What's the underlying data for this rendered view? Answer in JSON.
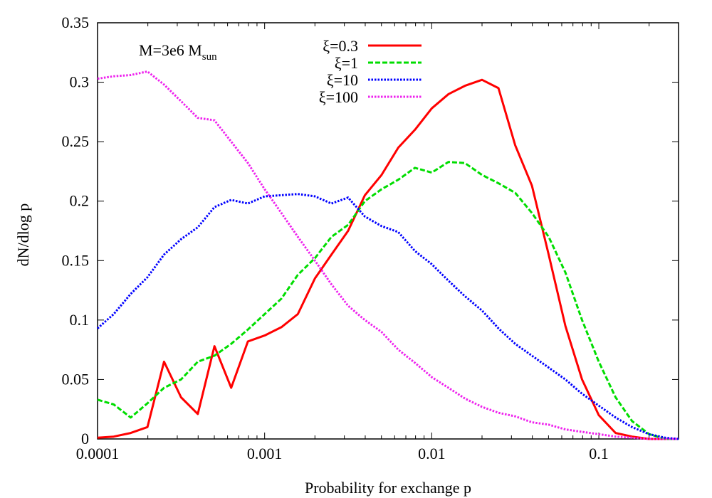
{
  "chart_data": {
    "type": "line",
    "title": "",
    "xlabel": "Probability for exchange p",
    "ylabel": "dN/dlog p",
    "xscale": "log",
    "xlim": [
      0.0001,
      0.3
    ],
    "ylim": [
      0,
      0.35
    ],
    "x_ticks": [
      0.0001,
      0.001,
      0.01,
      0.1
    ],
    "x_tick_labels": [
      "0.0001",
      "0.001",
      "0.01",
      "0.1"
    ],
    "y_ticks": [
      0,
      0.05,
      0.1,
      0.15,
      0.2,
      0.25,
      0.3,
      0.35
    ],
    "y_tick_labels": [
      "0",
      "0.05",
      "0.1",
      "0.15",
      "0.2",
      "0.25",
      "0.3",
      "0.35"
    ],
    "annotation": {
      "main": "M=3e6 M",
      "sub": "sun"
    },
    "legend_position": "top-center",
    "grid": false,
    "series": [
      {
        "name": "ξ=0.3",
        "color": "#ff0000",
        "style": "solid",
        "points": [
          [
            0.0001,
            0.001
          ],
          [
            0.000125,
            0.002
          ],
          [
            0.000158,
            0.005
          ],
          [
            0.000199,
            0.01
          ],
          [
            0.00025,
            0.065
          ],
          [
            0.000316,
            0.035
          ],
          [
            0.000398,
            0.021
          ],
          [
            0.000501,
            0.078
          ],
          [
            0.000631,
            0.043
          ],
          [
            0.000794,
            0.082
          ],
          [
            0.001,
            0.087
          ],
          [
            0.00126,
            0.094
          ],
          [
            0.00158,
            0.105
          ],
          [
            0.002,
            0.135
          ],
          [
            0.00251,
            0.155
          ],
          [
            0.00316,
            0.175
          ],
          [
            0.00398,
            0.205
          ],
          [
            0.00501,
            0.222
          ],
          [
            0.00631,
            0.245
          ],
          [
            0.00794,
            0.26
          ],
          [
            0.01,
            0.278
          ],
          [
            0.0126,
            0.29
          ],
          [
            0.0158,
            0.297
          ],
          [
            0.02,
            0.302
          ],
          [
            0.0251,
            0.295
          ],
          [
            0.0316,
            0.247
          ],
          [
            0.0398,
            0.213
          ],
          [
            0.0501,
            0.155
          ],
          [
            0.0631,
            0.095
          ],
          [
            0.0794,
            0.05
          ],
          [
            0.1,
            0.02
          ],
          [
            0.126,
            0.005
          ],
          [
            0.158,
            0.002
          ],
          [
            0.2,
            0.0
          ],
          [
            0.3,
            0.0
          ]
        ]
      },
      {
        "name": "ξ=1",
        "color": "#00dd00",
        "style": "dashed",
        "points": [
          [
            0.0001,
            0.033
          ],
          [
            0.000125,
            0.029
          ],
          [
            0.000158,
            0.018
          ],
          [
            0.000199,
            0.03
          ],
          [
            0.00025,
            0.043
          ],
          [
            0.000316,
            0.05
          ],
          [
            0.000398,
            0.065
          ],
          [
            0.000501,
            0.07
          ],
          [
            0.000631,
            0.08
          ],
          [
            0.000794,
            0.092
          ],
          [
            0.001,
            0.105
          ],
          [
            0.00126,
            0.118
          ],
          [
            0.00158,
            0.138
          ],
          [
            0.002,
            0.152
          ],
          [
            0.00251,
            0.17
          ],
          [
            0.00316,
            0.18
          ],
          [
            0.00398,
            0.2
          ],
          [
            0.00501,
            0.21
          ],
          [
            0.00631,
            0.218
          ],
          [
            0.00794,
            0.228
          ],
          [
            0.01,
            0.224
          ],
          [
            0.0126,
            0.233
          ],
          [
            0.0158,
            0.232
          ],
          [
            0.02,
            0.222
          ],
          [
            0.0251,
            0.215
          ],
          [
            0.0316,
            0.207
          ],
          [
            0.0398,
            0.19
          ],
          [
            0.0501,
            0.17
          ],
          [
            0.0631,
            0.14
          ],
          [
            0.0794,
            0.1
          ],
          [
            0.1,
            0.065
          ],
          [
            0.126,
            0.035
          ],
          [
            0.158,
            0.015
          ],
          [
            0.2,
            0.004
          ],
          [
            0.25,
            0.0
          ],
          [
            0.3,
            0.0
          ]
        ]
      },
      {
        "name": "ξ=10",
        "color": "#0000ff",
        "style": "dotted",
        "points": [
          [
            0.0001,
            0.093
          ],
          [
            0.000125,
            0.105
          ],
          [
            0.000158,
            0.122
          ],
          [
            0.000199,
            0.136
          ],
          [
            0.00025,
            0.155
          ],
          [
            0.000316,
            0.168
          ],
          [
            0.000398,
            0.178
          ],
          [
            0.000501,
            0.195
          ],
          [
            0.000631,
            0.201
          ],
          [
            0.000794,
            0.198
          ],
          [
            0.001,
            0.204
          ],
          [
            0.00126,
            0.205
          ],
          [
            0.00158,
            0.206
          ],
          [
            0.002,
            0.204
          ],
          [
            0.00251,
            0.198
          ],
          [
            0.00316,
            0.203
          ],
          [
            0.00398,
            0.187
          ],
          [
            0.00501,
            0.179
          ],
          [
            0.00631,
            0.174
          ],
          [
            0.00794,
            0.158
          ],
          [
            0.01,
            0.147
          ],
          [
            0.0126,
            0.133
          ],
          [
            0.0158,
            0.12
          ],
          [
            0.02,
            0.108
          ],
          [
            0.0251,
            0.093
          ],
          [
            0.0316,
            0.08
          ],
          [
            0.0398,
            0.07
          ],
          [
            0.0501,
            0.06
          ],
          [
            0.0631,
            0.05
          ],
          [
            0.0794,
            0.038
          ],
          [
            0.1,
            0.028
          ],
          [
            0.126,
            0.018
          ],
          [
            0.158,
            0.01
          ],
          [
            0.2,
            0.004
          ],
          [
            0.25,
            0.001
          ],
          [
            0.3,
            0.0
          ]
        ]
      },
      {
        "name": "ξ=100",
        "color": "#ee22ee",
        "style": "dotted",
        "points": [
          [
            0.0001,
            0.303
          ],
          [
            0.000125,
            0.305
          ],
          [
            0.000158,
            0.306
          ],
          [
            0.000199,
            0.309
          ],
          [
            0.00025,
            0.298
          ],
          [
            0.000316,
            0.284
          ],
          [
            0.000398,
            0.27
          ],
          [
            0.000501,
            0.268
          ],
          [
            0.000631,
            0.25
          ],
          [
            0.000794,
            0.232
          ],
          [
            0.001,
            0.21
          ],
          [
            0.00126,
            0.19
          ],
          [
            0.00158,
            0.17
          ],
          [
            0.002,
            0.15
          ],
          [
            0.00251,
            0.13
          ],
          [
            0.00316,
            0.112
          ],
          [
            0.00398,
            0.1
          ],
          [
            0.00501,
            0.09
          ],
          [
            0.00631,
            0.075
          ],
          [
            0.00794,
            0.064
          ],
          [
            0.01,
            0.052
          ],
          [
            0.0126,
            0.043
          ],
          [
            0.0158,
            0.034
          ],
          [
            0.02,
            0.027
          ],
          [
            0.0251,
            0.022
          ],
          [
            0.0316,
            0.019
          ],
          [
            0.0398,
            0.014
          ],
          [
            0.0501,
            0.012
          ],
          [
            0.0631,
            0.008
          ],
          [
            0.0794,
            0.006
          ],
          [
            0.1,
            0.004
          ],
          [
            0.126,
            0.002
          ],
          [
            0.158,
            0.001
          ],
          [
            0.2,
            0.0
          ],
          [
            0.3,
            0.0
          ]
        ]
      }
    ]
  }
}
